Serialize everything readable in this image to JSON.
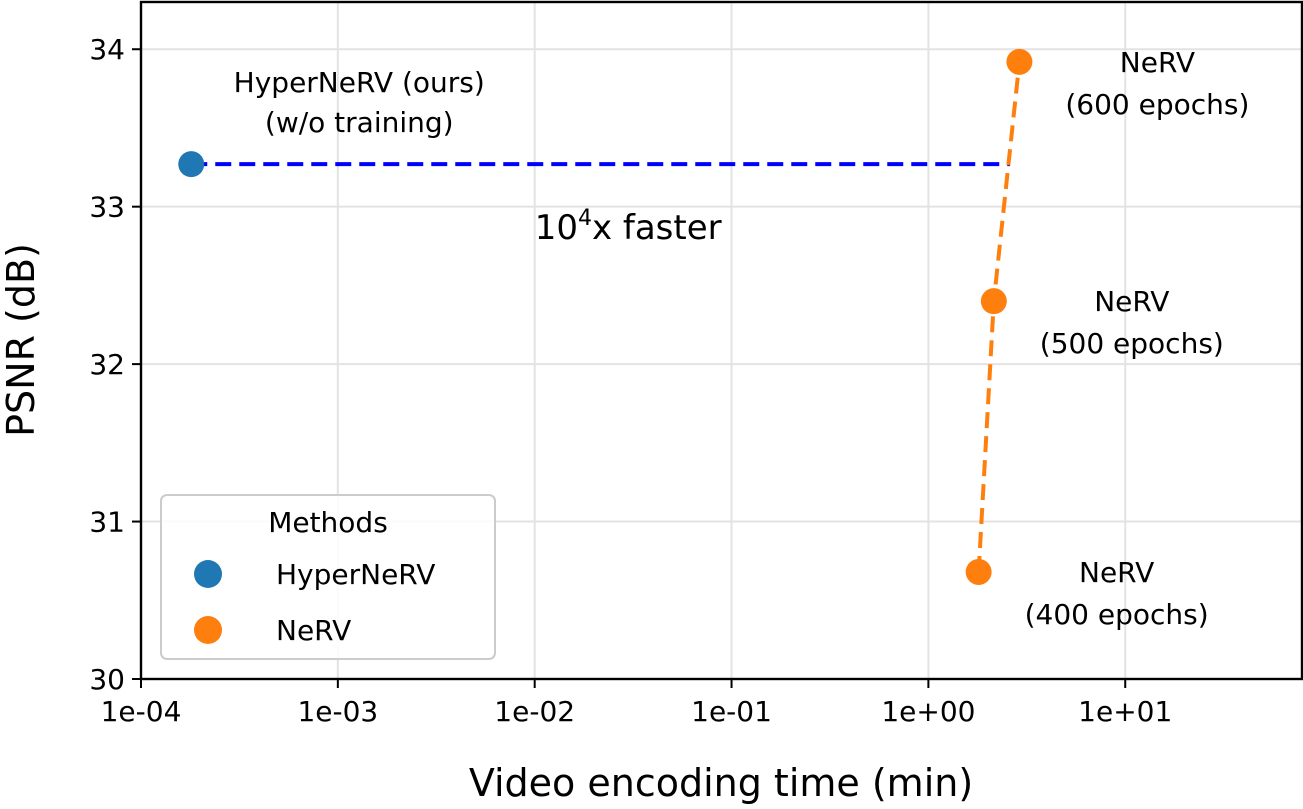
{
  "chart_data": {
    "type": "scatter",
    "xlabel": "Video encoding time (min)",
    "ylabel": "PSNR (dB)",
    "xscale": "log",
    "xlim": [
      0.0001,
      80
    ],
    "ylim": [
      30,
      34.3
    ],
    "grid": true,
    "x_ticks": [
      {
        "value": 0.0001,
        "label": "1e-04"
      },
      {
        "value": 0.001,
        "label": "1e-03"
      },
      {
        "value": 0.01,
        "label": "1e-02"
      },
      {
        "value": 0.1,
        "label": "1e-01"
      },
      {
        "value": 1,
        "label": "1e+00"
      },
      {
        "value": 10,
        "label": "1e+01"
      }
    ],
    "y_ticks": [
      {
        "value": 30,
        "label": "30"
      },
      {
        "value": 31,
        "label": "31"
      },
      {
        "value": 32,
        "label": "32"
      },
      {
        "value": 33,
        "label": "33"
      },
      {
        "value": 34,
        "label": "34"
      }
    ],
    "series": [
      {
        "name": "HyperNeRV",
        "color": "#1f77b4",
        "points": [
          {
            "x": 0.00018,
            "y": 33.27,
            "label_line1": "HyperNeRV (ours)",
            "label_line2": "(w/o training)"
          }
        ]
      },
      {
        "name": "NeRV",
        "color": "#ff7f0e",
        "line_style": "dashed",
        "points": [
          {
            "x": 1.8,
            "y": 30.68,
            "label_line1": "NeRV",
            "label_line2": "(400 epochs)"
          },
          {
            "x": 2.15,
            "y": 32.4,
            "label_line1": "NeRV",
            "label_line2": "(500 epochs)"
          },
          {
            "x": 2.9,
            "y": 33.92,
            "label_line1": "NeRV",
            "label_line2": "(600 epochs)"
          }
        ]
      }
    ],
    "comparison_line": {
      "color": "#0000ff",
      "style": "dashed",
      "x_start": 0.00018,
      "x_end": 2.6,
      "y": 33.27
    },
    "speedup_annotation": {
      "base": "10",
      "exponent": "4",
      "suffix": "x faster",
      "x": 0.01,
      "y": 32.87
    },
    "legend": {
      "title": "Methods",
      "placement": "lower-left",
      "entries": [
        "HyperNeRV",
        "NeRV"
      ]
    }
  }
}
